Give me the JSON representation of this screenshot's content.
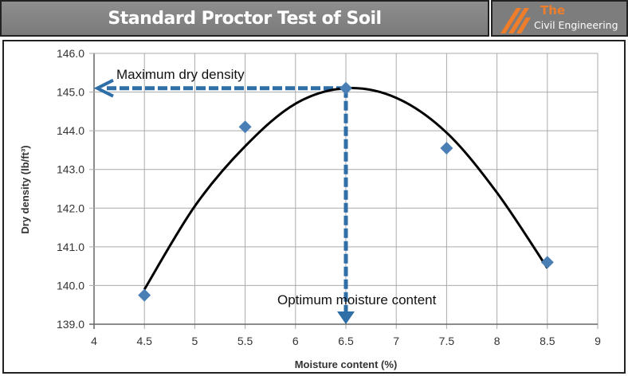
{
  "header": {
    "title": "Standard Proctor Test of Soil"
  },
  "logo": {
    "line1": "The",
    "line2": "Civil Engineering",
    "accent": "#f07d2a"
  },
  "chart_data": {
    "type": "scatter",
    "title": "",
    "xlabel": "Moisture content (%)",
    "ylabel": "Dry density (lb/ft³)",
    "xlim": [
      4,
      9
    ],
    "ylim": [
      139,
      146
    ],
    "xticks": [
      "4",
      "4.5",
      "5",
      "5.5",
      "6",
      "6.5",
      "7",
      "7.5",
      "8",
      "8.5",
      "9"
    ],
    "yticks": [
      "139.0",
      "140.0",
      "141.0",
      "142.0",
      "143.0",
      "144.0",
      "145.0",
      "146.0"
    ],
    "grid": true,
    "points": {
      "x": [
        4.5,
        5.5,
        6.5,
        7.5,
        8.5
      ],
      "y": [
        139.75,
        144.1,
        145.1,
        143.55,
        140.6
      ]
    },
    "trendline": {
      "type": "polynomial",
      "x": [
        4.5,
        5,
        5.5,
        6,
        6.5,
        7,
        7.5,
        8,
        8.5
      ],
      "y": [
        139.9,
        142.05,
        143.6,
        144.7,
        145.1,
        144.85,
        143.95,
        142.4,
        140.45
      ]
    },
    "annotations": {
      "max_label": "Maximum dry density",
      "max_value": 145.1,
      "omc_label": "Optimum moisture content",
      "omc_value": 6.5
    },
    "colors": {
      "points": "#4a7fb5",
      "arrows": "#2f6fa8",
      "curve": "#000000"
    }
  }
}
